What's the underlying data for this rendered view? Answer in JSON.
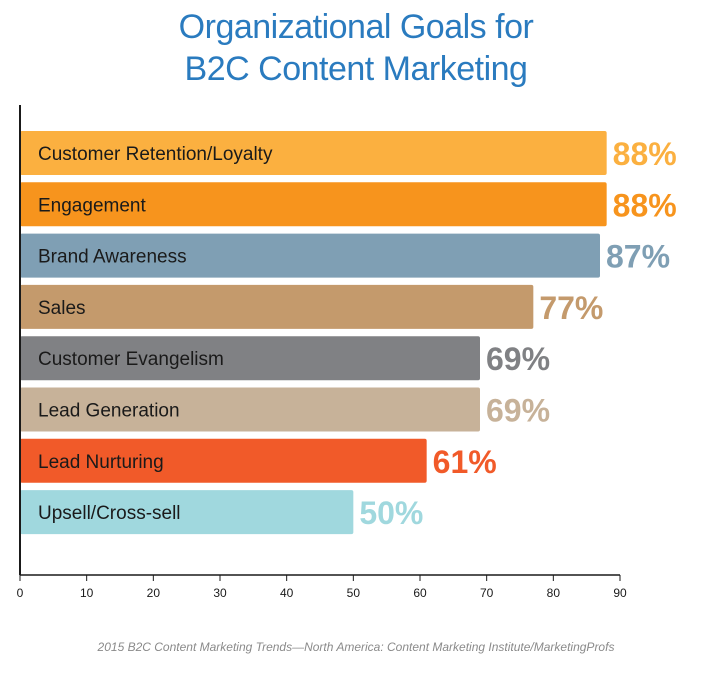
{
  "title_line1": "Organizational Goals for",
  "title_line2": "B2C Content Marketing",
  "source": "2015 B2C Content Marketing Trends—North America: Content Marketing Institute/MarketingProfs",
  "chart_data": {
    "type": "bar",
    "orientation": "horizontal",
    "title": "Organizational Goals for B2C Content Marketing",
    "categories": [
      "Customer Retention/Loyalty",
      "Engagement",
      "Brand Awareness",
      "Sales",
      "Customer Evangelism",
      "Lead Generation",
      "Lead Nurturing",
      "Upsell/Cross-sell"
    ],
    "values": [
      88,
      88,
      87,
      77,
      69,
      69,
      61,
      50
    ],
    "value_labels": [
      "88%",
      "88%",
      "87%",
      "77%",
      "69%",
      "69%",
      "61%",
      "50%"
    ],
    "colors": [
      "#fbb040",
      "#f7941d",
      "#7f9fb4",
      "#c49a6c",
      "#808184",
      "#c7b299",
      "#f15a29",
      "#a0d8de"
    ],
    "xlim": [
      0,
      90
    ],
    "xticks": [
      "0",
      "10",
      "20",
      "30",
      "40",
      "50",
      "60",
      "70",
      "80",
      "90"
    ],
    "grid": false
  }
}
